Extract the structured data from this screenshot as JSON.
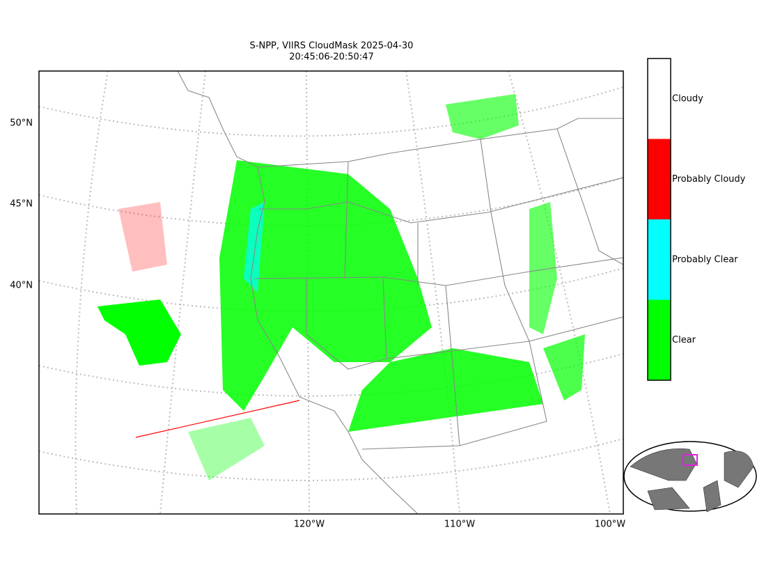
{
  "header": {
    "title": "S-NPP, VIIRS CloudMask 2025-04-30",
    "subtitle": "20:45:06-20:50:47"
  },
  "map": {
    "lat_labels": [
      "50°N",
      "45°N",
      "40°N"
    ],
    "lon_labels": [
      "120°W",
      "110°W",
      "100°W"
    ]
  },
  "legend": {
    "items": [
      {
        "label": "Cloudy",
        "color": "#ffffff"
      },
      {
        "label": "Probably Cloudy",
        "color": "#ff0000"
      },
      {
        "label": "Probably Clear",
        "color": "#00ffff"
      },
      {
        "label": "Clear",
        "color": "#00ff00"
      }
    ]
  }
}
